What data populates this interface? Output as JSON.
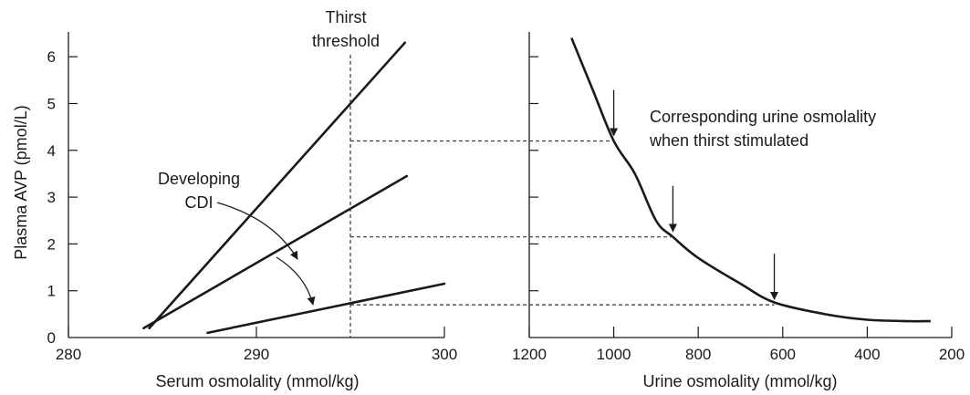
{
  "chart_data": [
    {
      "type": "line",
      "xlabel": "Serum osmolality (mmol/kg)",
      "ylabel": "Plasma AVP (pmol/L)",
      "xlim": [
        280,
        300
      ],
      "ylim": [
        0,
        6.5
      ],
      "xticks": [
        "280",
        "290",
        "300"
      ],
      "yticks": [
        "0",
        "1",
        "2",
        "3",
        "4",
        "5",
        "6"
      ],
      "series": [
        {
          "points": [
            [
              284.3,
              0.2
            ],
            [
              297.9,
              6.3
            ]
          ]
        },
        {
          "points": [
            [
              284.0,
              0.2
            ],
            [
              298.0,
              3.45
            ]
          ]
        },
        {
          "points": [
            [
              287.4,
              0.1
            ],
            [
              300.0,
              1.15
            ]
          ]
        }
      ],
      "threshold_x": 295,
      "threshold_label": [
        "Thirst",
        "threshold"
      ],
      "annotation": [
        "Developing",
        "CDI"
      ]
    },
    {
      "type": "line",
      "xlabel": "Urine osmolality (mmol/kg)",
      "xlim": [
        1200,
        200
      ],
      "xticks": [
        "1200",
        "1000",
        "800",
        "600",
        "400",
        "200"
      ],
      "series": [
        {
          "points": [
            [
              1100,
              6.4
            ],
            [
              1050,
              5.3
            ],
            [
              1000,
              4.2
            ],
            [
              950,
              3.5
            ],
            [
              900,
              2.5
            ],
            [
              860,
              2.15
            ],
            [
              800,
              1.7
            ],
            [
              700,
              1.15
            ],
            [
              620,
              0.75
            ],
            [
              500,
              0.5
            ],
            [
              400,
              0.38
            ],
            [
              300,
              0.35
            ],
            [
              250,
              0.35
            ]
          ]
        }
      ],
      "arrows_at": [
        1000,
        860,
        620
      ],
      "annotation": [
        "Corresponding urine osmolality",
        "when thirst stimulated"
      ]
    }
  ],
  "guide_levels": [
    4.2,
    2.15,
    0.7
  ]
}
